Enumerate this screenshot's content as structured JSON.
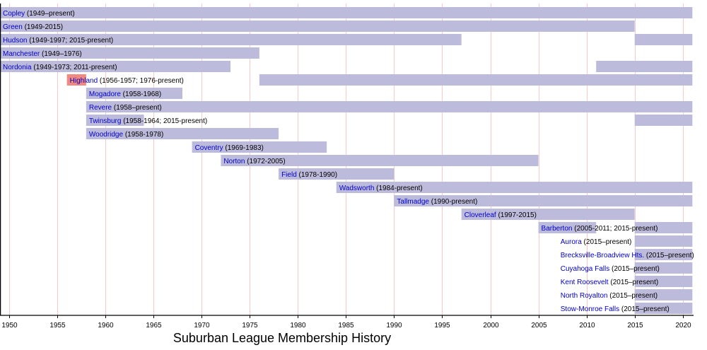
{
  "chart_data": {
    "type": "timeline",
    "title": "Suburban League Membership History",
    "xlabel": "",
    "ylabel": "",
    "xlim": [
      1949,
      2021
    ],
    "x_ticks": [
      1950,
      1955,
      1960,
      1965,
      1970,
      1975,
      1980,
      1985,
      1990,
      1995,
      2000,
      2005,
      2010,
      2015,
      2020
    ],
    "grid": true,
    "colors": {
      "bar": "#bdbbdb",
      "highlight_bar": "#f08a80",
      "grid": "#f9c8c8",
      "link_text": "#0000cc",
      "text": "#000000"
    },
    "present_year": 2021,
    "rows": [
      {
        "name": "Copley",
        "note": "(1949–present)",
        "periods": [
          [
            1949,
            2021
          ]
        ]
      },
      {
        "name": "Green",
        "note": "(1949-2015)",
        "periods": [
          [
            1949,
            2015
          ]
        ]
      },
      {
        "name": "Hudson",
        "note": "(1949-1997; 2015-present)",
        "periods": [
          [
            1949,
            1997
          ],
          [
            2015,
            2021
          ]
        ]
      },
      {
        "name": "Manchester",
        "note": "(1949–1976)",
        "periods": [
          [
            1949,
            1976
          ]
        ]
      },
      {
        "name": "Nordonia",
        "note": "(1949-1973; 2011-present)",
        "periods": [
          [
            1949,
            1973
          ],
          [
            2011,
            2021
          ]
        ]
      },
      {
        "name": "Highland",
        "note": "(1956-1957; 1976-present)",
        "periods": [
          [
            1956,
            1958
          ],
          [
            1976,
            2021
          ]
        ],
        "highlight_periods": [
          0
        ]
      },
      {
        "name": "Mogadore",
        "note": "(1958-1968)",
        "periods": [
          [
            1958,
            1968
          ]
        ]
      },
      {
        "name": "Revere",
        "note": "(1958–present)",
        "periods": [
          [
            1958,
            2021
          ]
        ]
      },
      {
        "name": "Twinsburg",
        "note": "(1958-1964; 2015-present)",
        "periods": [
          [
            1958,
            1964
          ],
          [
            2015,
            2021
          ]
        ]
      },
      {
        "name": "Woodridge",
        "note": "(1958-1978)",
        "periods": [
          [
            1958,
            1978
          ]
        ]
      },
      {
        "name": "Coventry",
        "note": "(1969-1983)",
        "periods": [
          [
            1969,
            1983
          ]
        ]
      },
      {
        "name": "Norton",
        "note": "(1972-2005)",
        "periods": [
          [
            1972,
            2005
          ]
        ]
      },
      {
        "name": "Field",
        "note": "(1978-1990)",
        "periods": [
          [
            1978,
            1990
          ]
        ]
      },
      {
        "name": "Wadsworth",
        "note": "(1984-present)",
        "periods": [
          [
            1984,
            2021
          ]
        ]
      },
      {
        "name": "Tallmadge",
        "note": "(1990-present)",
        "periods": [
          [
            1990,
            2021
          ]
        ]
      },
      {
        "name": "Cloverleaf",
        "note": "(1997-2015)",
        "periods": [
          [
            1997,
            2015
          ]
        ]
      },
      {
        "name": "Barberton",
        "note": "(2005-2011; 2015-present)",
        "periods": [
          [
            2005,
            2011
          ],
          [
            2015,
            2021
          ]
        ]
      },
      {
        "name": "Aurora",
        "note": "(2015–present)",
        "periods": [
          [
            2015,
            2021
          ]
        ],
        "label_start": 2007
      },
      {
        "name": "Brecksville-Broadview Hts.",
        "note": "(2015–present)",
        "periods": [
          [
            2015,
            2021
          ]
        ],
        "label_start": 2007
      },
      {
        "name": "Cuyahoga Falls",
        "note": "(2015–present)",
        "periods": [
          [
            2015,
            2021
          ]
        ],
        "label_start": 2007
      },
      {
        "name": "Kent Roosevelt",
        "note": "(2015–present)",
        "periods": [
          [
            2015,
            2021
          ]
        ],
        "label_start": 2007
      },
      {
        "name": "North Royalton",
        "note": "(2015–present)",
        "periods": [
          [
            2015,
            2021
          ]
        ],
        "label_start": 2007
      },
      {
        "name": "Stow-Monroe Falls",
        "note": "(2015–present)",
        "periods": [
          [
            2015,
            2021
          ]
        ],
        "label_start": 2007
      }
    ]
  }
}
